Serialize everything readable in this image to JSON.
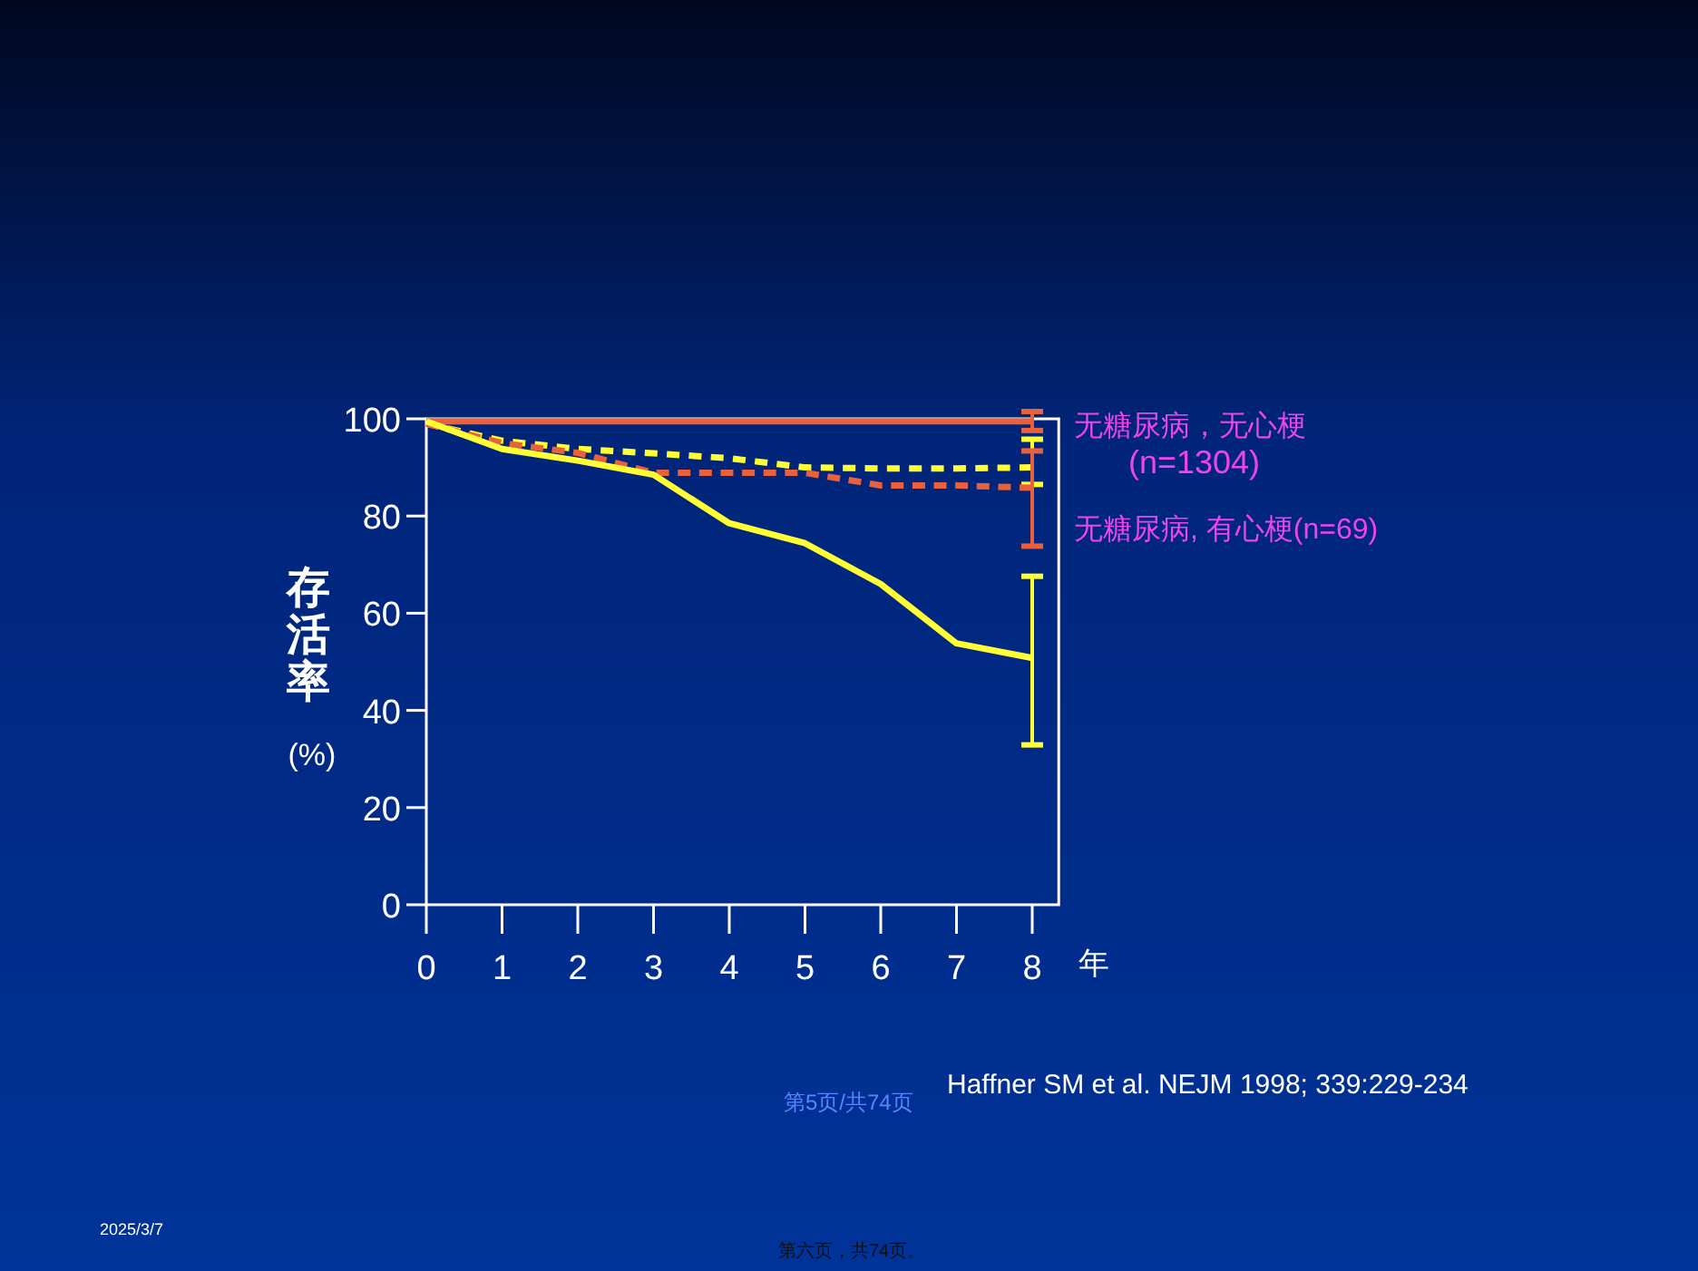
{
  "chart_data": {
    "type": "line",
    "xlabel": "年",
    "ylabel": "存活率 (%)",
    "x": [
      0,
      1,
      2,
      3,
      4,
      5,
      6,
      7,
      8
    ],
    "xlim": [
      0,
      8.35
    ],
    "xticks": [
      0,
      1,
      2,
      3,
      4,
      5,
      6,
      7,
      8
    ],
    "ylim": [
      0,
      100
    ],
    "yticks": [
      0,
      20,
      40,
      60,
      80,
      100
    ],
    "grid": false,
    "legend": "right",
    "marker": "none",
    "series": [
      {
        "name": "无糖尿病，无心梗\n(n=1304)",
        "color": "#e8603c",
        "line_style": "solid",
        "values": [
          99.5,
          99.5,
          99.5,
          99.5,
          99.5,
          99.5,
          99.5,
          99.5,
          99.5
        ],
        "errors": [
          null,
          null,
          null,
          null,
          null,
          null,
          null,
          null,
          [
            97.6,
            101.5
          ]
        ]
      },
      {
        "color": "#ffff33",
        "line_style": "dashed",
        "values": [
          99,
          95.5,
          93.8,
          92.9,
          91.9,
          90,
          89.8,
          89.8,
          90
        ],
        "errors": [
          null,
          null,
          null,
          null,
          null,
          null,
          null,
          null,
          [
            86.5,
            95.8
          ]
        ]
      },
      {
        "name": "无糖尿病, 有心梗(n=69)",
        "color": "#e8603c",
        "line_style": "dashed",
        "values": [
          99,
          95,
          93,
          88.9,
          88.9,
          88.9,
          86.3,
          86.3,
          85.8
        ],
        "errors": [
          null,
          null,
          null,
          null,
          null,
          null,
          null,
          null,
          [
            73.8,
            93.4
          ]
        ]
      },
      {
        "color": "#ffff33",
        "line_style": "solid",
        "values": [
          99.5,
          93.8,
          91.4,
          88.5,
          78.5,
          74.4,
          66,
          53.8,
          50.8
        ],
        "errors": [
          null,
          null,
          null,
          null,
          null,
          null,
          null,
          null,
          [
            32.9,
            67.6
          ]
        ]
      }
    ],
    "annotations": [
      "Haffner SM et al. NEJM 1998; 339:229-234",
      "第5页/共74页",
      "2025/3/7",
      "第六页，共74页。"
    ]
  }
}
